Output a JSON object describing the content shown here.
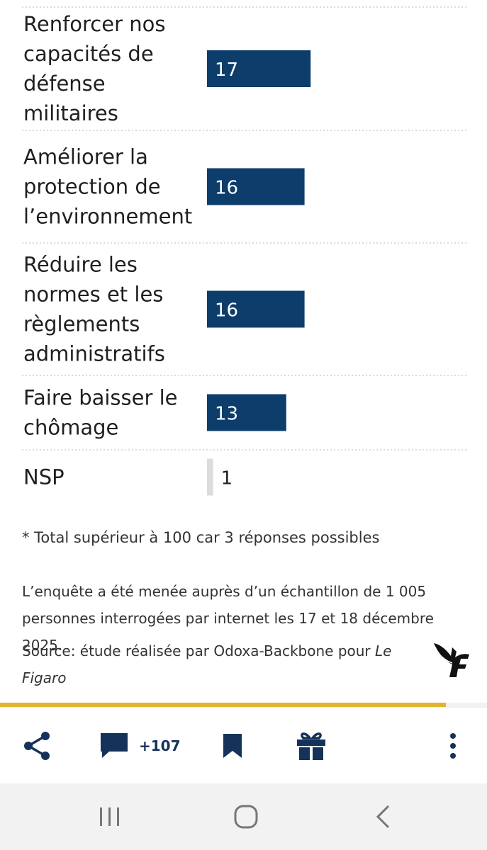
{
  "chart_data": {
    "type": "bar",
    "orientation": "horizontal",
    "categories": [
      "Renforcer nos capacités de défense militaires",
      "Améliorer la protection de l’environnement",
      "Réduire les normes et les règlements administratifs",
      "Faire baisser le chômage",
      "NSP"
    ],
    "category_lines": [
      [
        "Renforcer nos",
        "capacités de",
        "défense",
        "militaires"
      ],
      [
        "Améliorer la",
        "protection de",
        "l’environnement"
      ],
      [
        "Réduire les",
        "normes et les",
        "règlements",
        "administratifs"
      ],
      [
        "Faire baisser le",
        "chômage"
      ],
      [
        "NSP"
      ]
    ],
    "values": [
      17,
      16,
      16,
      13,
      1
    ],
    "value_labels": [
      "17",
      "16",
      "16",
      "13",
      "1"
    ],
    "bar_colors": [
      "#0c3d6b",
      "#0c3d6b",
      "#0c3d6b",
      "#0c3d6b",
      "#dcdcdc"
    ],
    "grid": false,
    "legend": "none"
  },
  "notes": {
    "footnote": "* Total supérieur à 100 car 3 réponses possibles",
    "methodology": "L’enquête a été menée auprès d’un échantillon de 1 005 personnes interrogées par internet les 17 et 18 décembre 2025.",
    "source_prefix": "Source: étude réalisée par Odoxa-Backbone pour ",
    "source_publication": "Le Figaro"
  },
  "reading_progress": 0.915,
  "action_bar": {
    "comment_count": "+107",
    "icons": [
      "share-icon",
      "comment-icon",
      "bookmark-icon",
      "gift-icon",
      "more-vertical-icon"
    ],
    "accent_color": "#15335a"
  },
  "nav_bar": {
    "icons": [
      "recent-apps-icon",
      "home-icon",
      "back-icon"
    ]
  },
  "logo": "le-figaro-logo"
}
